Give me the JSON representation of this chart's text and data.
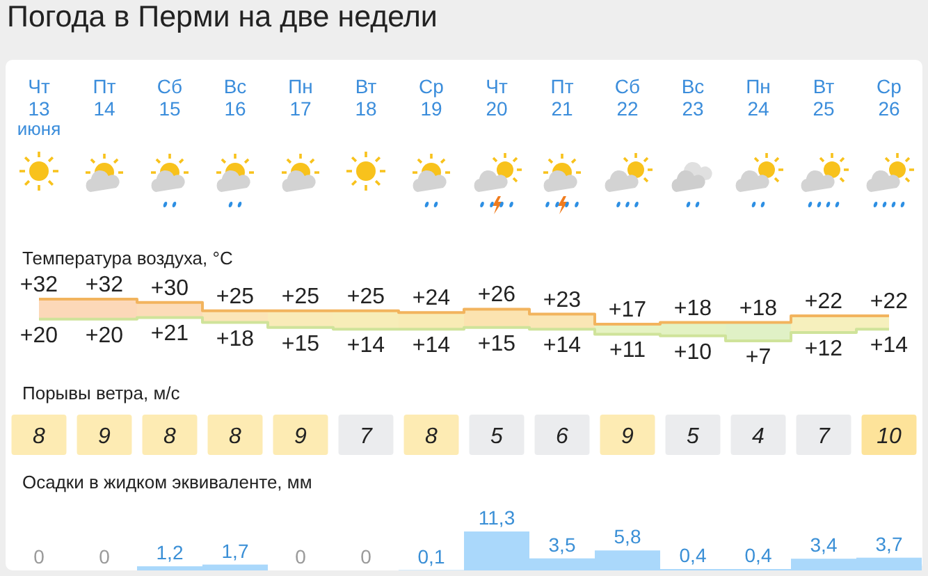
{
  "chart_data": [
    {
      "type": "step",
      "title": "Погода в Перми на две недели",
      "subtitle": "Температура воздуха, °C",
      "categories": [
        "Чт 13 июня",
        "Пт 14",
        "Сб 15",
        "Вс 16",
        "Пн 17",
        "Вт 18",
        "Ср 19",
        "Чт 20",
        "Пт 21",
        "Сб 22",
        "Вс 23",
        "Пн 24",
        "Вт 25",
        "Ср 26"
      ],
      "series": [
        {
          "color": "#f2b45e",
          "values": [
            32,
            32,
            30,
            25,
            25,
            25,
            24,
            26,
            23,
            17,
            18,
            18,
            22,
            22
          ],
          "value_labels": [
            "+32",
            "+32",
            "+30",
            "+25",
            "+25",
            "+25",
            "+24",
            "+26",
            "+23",
            "+17",
            "+18",
            "+18",
            "+22",
            "+22"
          ],
          "lower": [
            20,
            20,
            21,
            18,
            15,
            14,
            14,
            15,
            14,
            11,
            10,
            7,
            12,
            14
          ],
          "upper": [
            32,
            32,
            30,
            25,
            25,
            25,
            24,
            26,
            23,
            17,
            18,
            18,
            22,
            22
          ]
        },
        {
          "color": "#cfe39a",
          "values": [
            20,
            20,
            21,
            18,
            15,
            14,
            14,
            15,
            14,
            11,
            10,
            7,
            12,
            14
          ],
          "value_labels": [
            "+20",
            "+20",
            "+21",
            "+18",
            "+15",
            "+14",
            "+14",
            "+15",
            "+14",
            "+11",
            "+10",
            "+7",
            "+12",
            "+14"
          ]
        }
      ],
      "colors": [
        "#fcd8b8",
        "#fcd8b8",
        "#fcdcb8",
        "#fbe5b8",
        "#f9ebb8",
        "#f7edb8",
        "#f8ebb5",
        "#fbe3b0",
        "#fae6b5",
        "#e6f3c3",
        "#e3f2c3",
        "#e0f1c6",
        "#f6f0bd",
        "#f6f0bd"
      ],
      "tick_labels": "x"
    },
    {
      "type": "heatmap",
      "title": "Порывы ветра, м/с",
      "categories": [
        null,
        null,
        null,
        null,
        null,
        null,
        null,
        null,
        null,
        null,
        null,
        null,
        null,
        null
      ],
      "y_categories": [
        null
      ],
      "cells": [
        [
          8,
          9,
          8,
          8,
          9,
          7,
          8,
          5,
          6,
          9,
          5,
          4,
          7,
          10
        ]
      ],
      "colors": [
        "#fdebb3",
        "#fdebb3",
        "#fdebb3",
        "#fdebb3",
        "#fdebb3",
        "#ebecee",
        "#fdebb3",
        "#ebecee",
        "#ebecee",
        "#fdebb3",
        "#ebecee",
        "#ebecee",
        "#ebecee",
        "#fde39a"
      ],
      "data_labels": true
    },
    {
      "type": "bar",
      "title": "Осадки в жидком эквиваленте, мм",
      "categories": [
        null,
        null,
        null,
        null,
        null,
        null,
        null,
        null,
        null,
        null,
        null,
        null,
        null,
        null
      ],
      "values": [
        0,
        0,
        1.2,
        1.7,
        0,
        0,
        0.1,
        11.3,
        3.5,
        5.8,
        0.4,
        0.4,
        3.4,
        3.7
      ],
      "value_labels": [
        "0",
        "0",
        "1,2",
        "1,7",
        "0",
        "0",
        "0,1",
        "11,3",
        "3,5",
        "5,8",
        "0,4",
        "0,4",
        "3,4",
        "3,7"
      ],
      "color": "#aad8fb"
    }
  ]
}
